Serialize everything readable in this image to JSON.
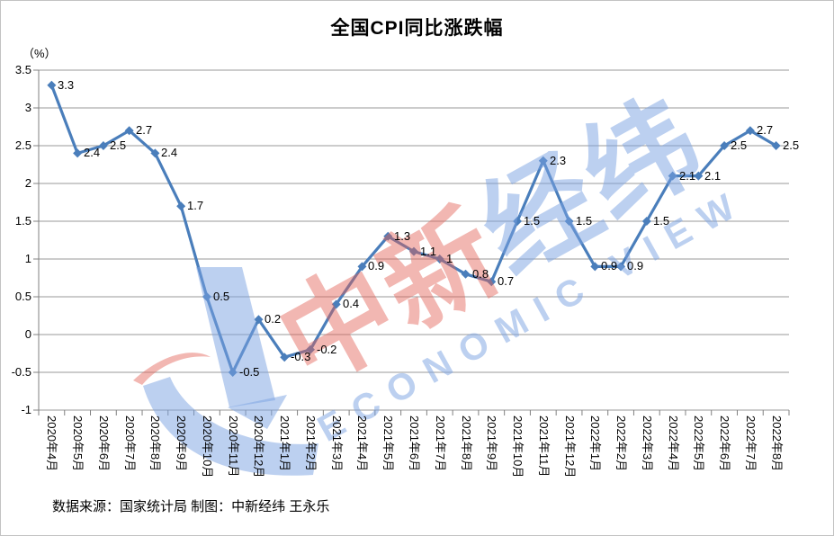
{
  "title": "全国CPI同比涨跌幅",
  "y_axis": {
    "unit": "（%）",
    "ticks": [
      "3.5",
      "3",
      "2.5",
      "2",
      "1.5",
      "1",
      "0.5",
      "0",
      "-0.5",
      "-1"
    ]
  },
  "footer": {
    "source_note": "数据来源：国家统计局 制图：中新经纬 王永乐"
  },
  "watermark": {
    "cn_red": "中新",
    "cn_blue": "经纬",
    "en": "ECONOMIC VIEW"
  },
  "colors": {
    "line": "#4a7ebb",
    "grid": "#9a9a9a",
    "axis": "#808080",
    "watermark_red": "rgba(226,96,85,0.45)",
    "watermark_blue": "rgba(122,162,226,0.5)",
    "text": "#000000"
  },
  "chart_data": {
    "type": "line",
    "title": "全国CPI同比涨跌幅",
    "xlabel": "",
    "ylabel": "（%）",
    "ylim": [
      -1,
      3.5
    ],
    "ytick_step": 0.5,
    "grid": true,
    "legend": false,
    "categories": [
      "2020年4月",
      "2020年5月",
      "2020年6月",
      "2020年7月",
      "2020年8月",
      "2020年9月",
      "2020年10月",
      "2020年11月",
      "2020年12月",
      "2021年1月",
      "2021年2月",
      "2021年3月",
      "2021年4月",
      "2021年5月",
      "2021年6月",
      "2021年7月",
      "2021年8月",
      "2021年9月",
      "2021年10月",
      "2021年11月",
      "2021年12月",
      "2022年1月",
      "2022年2月",
      "2022年3月",
      "2022年4月",
      "2022年5月",
      "2022年6月",
      "2022年7月",
      "2022年8月"
    ],
    "values": [
      3.3,
      2.4,
      2.5,
      2.7,
      2.4,
      1.7,
      0.5,
      -0.5,
      0.2,
      -0.3,
      -0.2,
      0.4,
      0.9,
      1.3,
      1.1,
      1,
      0.8,
      0.7,
      1.5,
      2.3,
      1.5,
      0.9,
      0.9,
      1.5,
      2.1,
      2.1,
      2.5,
      2.7,
      2.5
    ],
    "labels": [
      "3.3",
      "2.4",
      "2.5",
      "2.7",
      "2.4",
      "1.7",
      "0.5",
      "-0.5",
      "0.2",
      "-0.3",
      "-0.2",
      "0.4",
      "0.9",
      "1.3",
      "1.1",
      "1",
      "0.8",
      "0.7",
      "1.5",
      "2.3",
      "1.5",
      "0.9",
      "0.9",
      "1.5",
      "2.1",
      "2.1",
      "2.5",
      "2.7",
      "2.5"
    ],
    "series_name": "全国CPI同比涨跌幅"
  }
}
